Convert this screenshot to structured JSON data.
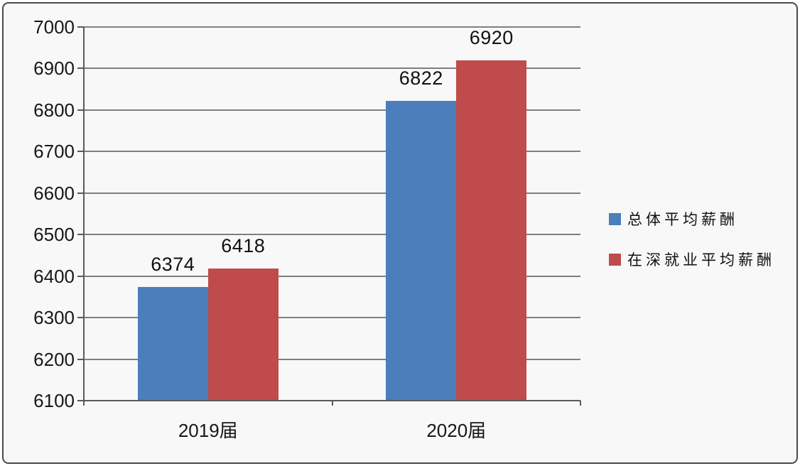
{
  "chart_data": {
    "type": "bar",
    "title": "",
    "xlabel": "",
    "ylabel": "",
    "categories": [
      "2019届",
      "2020届"
    ],
    "series": [
      {
        "name": "总体平均薪酬",
        "color": "#4b7ebb",
        "values": [
          6374,
          6822
        ]
      },
      {
        "name": "在深就业平均薪酬",
        "color": "#bf4b4b",
        "values": [
          6418,
          6920
        ]
      }
    ],
    "ylim": [
      6100,
      7000
    ],
    "ytick_step": 100,
    "y_ticks": [
      6100,
      6200,
      6300,
      6400,
      6500,
      6600,
      6700,
      6800,
      6900,
      7000
    ],
    "grid": true,
    "data_labels": true,
    "legend_position": "right"
  },
  "colors": {
    "gridline": "#7f7f7f",
    "axis": "#595959",
    "text": "#171717",
    "frame_border": "#4a4a4a",
    "frame_background": "#f8f8f8",
    "series_blue": "#4b7ebb",
    "series_red": "#bf4b4b"
  }
}
